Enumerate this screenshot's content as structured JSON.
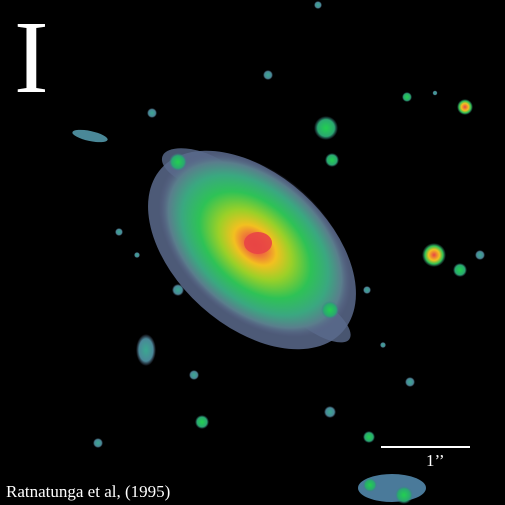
{
  "image": {
    "band_label": "I",
    "scale_bar_label": "1’’",
    "credit": "Ratnatunga et al, (1995)"
  },
  "colors": {
    "background": "#000000",
    "text": "#ffffff",
    "core": "#e84545",
    "inner": "#f2c020",
    "mid": "#9ad028",
    "outer": "#2ec256",
    "halo": "#4a9088",
    "faint": "#6a6a90"
  }
}
